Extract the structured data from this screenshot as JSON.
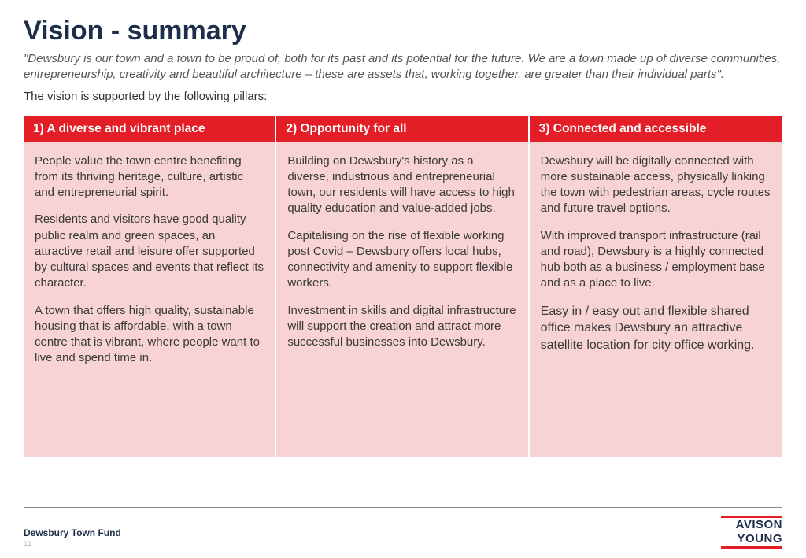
{
  "title": "Vision  - summary",
  "quote": "\"Dewsbury is our town and a town to be proud of, both for its past and its potential for the future. We are a town made up of diverse communities, entrepreneurship, creativity and beautiful architecture – these are assets that, working together, are greater than their individual parts\".",
  "intro": "The vision is supported by the following pillars:",
  "colors": {
    "header_bg": "#e41e26",
    "header_text": "#ffffff",
    "body_bg": "#f7d3d3",
    "body_text": "#3a3a3a",
    "title_color": "#1d2d4a",
    "page_bg": "#ffffff"
  },
  "pillars": [
    {
      "header": "1) A diverse and vibrant place",
      "paragraphs": [
        "People value the town centre benefiting from its thriving heritage, culture, artistic and entrepreneurial spirit.",
        "Residents and visitors have good quality public realm and green spaces, an attractive retail and leisure offer supported by cultural spaces and events that reflect its character.",
        "A town that offers high quality, sustainable housing that is affordable, with a town centre that is vibrant, where people want to live and spend time in."
      ]
    },
    {
      "header": "2) Opportunity for all",
      "paragraphs": [
        "Building on Dewsbury's history as a diverse, industrious and entrepreneurial town, our residents will have access to high quality education and value-added jobs.",
        "Capitalising on the rise of flexible working post Covid – Dewsbury offers local hubs, connectivity and amenity to support flexible workers.",
        "Investment in skills and digital infrastructure will support the creation and attract more successful businesses into Dewsbury."
      ]
    },
    {
      "header": "3) Connected and accessible",
      "paragraphs": [
        "Dewsbury will be digitally connected with more sustainable access, physically linking the town with pedestrian areas, cycle routes and future travel options.",
        "With improved transport infrastructure (rail and road), Dewsbury is a highly connected hub both as a business / employment base and as a place to live."
      ],
      "emphasis": "Easy in / easy out and flexible shared office makes Dewsbury an attractive satellite location for city office working."
    }
  ],
  "footer": {
    "left": "Dewsbury Town Fund",
    "page_number": "11",
    "logo_line1": "AVISON",
    "logo_line2": "YOUNG"
  }
}
